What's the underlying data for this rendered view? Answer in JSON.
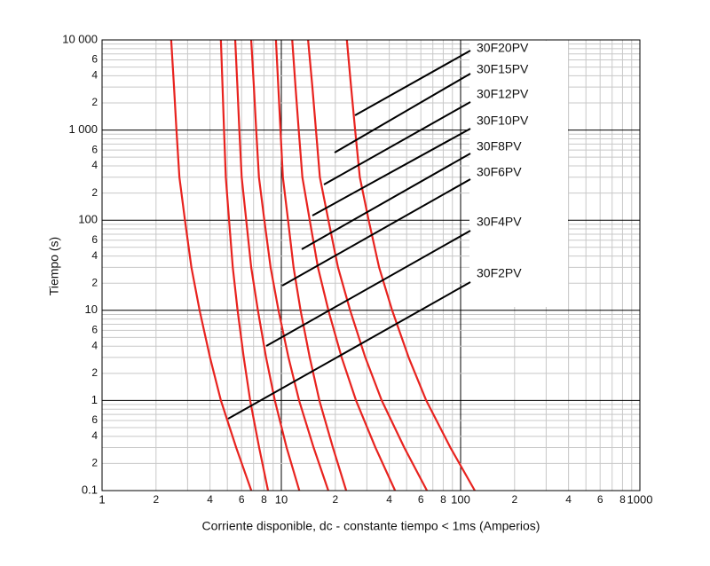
{
  "chart_data": {
    "type": "line",
    "x_label": "Corriente disponible, dc - constante tiempo < 1ms (Amperios)",
    "y_label": "Tiempo (s)",
    "xscale": "log",
    "yscale": "log",
    "grid": true,
    "minor_grid": true,
    "xlim": [
      1,
      1000
    ],
    "ylim": [
      0.1,
      10000
    ],
    "xticks": [
      1,
      2,
      4,
      6,
      8,
      10,
      {
        "value": 20,
        "label": "2"
      },
      {
        "value": 40,
        "label": "4"
      },
      {
        "value": 60,
        "label": "6"
      },
      {
        "value": 80,
        "label": "8"
      },
      100,
      {
        "value": 200,
        "label": "2"
      },
      {
        "value": 400,
        "label": "4"
      },
      {
        "value": 600,
        "label": "6"
      },
      {
        "value": 800,
        "label": "8"
      },
      1000
    ],
    "yticks": [
      0.1,
      {
        "value": 0.2,
        "label": "2"
      },
      {
        "value": 0.4,
        "label": "4"
      },
      {
        "value": 0.6,
        "label": "6"
      },
      1,
      2,
      4,
      6,
      10,
      {
        "value": 20,
        "label": "2"
      },
      {
        "value": 40,
        "label": "4"
      },
      {
        "value": 60,
        "label": "6"
      },
      100,
      {
        "value": 200,
        "label": "2"
      },
      {
        "value": 400,
        "label": "4"
      },
      {
        "value": 600,
        "label": "6"
      },
      {
        "value": 1000,
        "label": "1 000"
      },
      {
        "value": 2000,
        "label": "2"
      },
      {
        "value": 4000,
        "label": "4"
      },
      {
        "value": 6000,
        "label": "6"
      },
      {
        "value": 10000,
        "label": "10 000"
      }
    ],
    "series": [
      {
        "name": "30F2PV",
        "color": "#e8231f",
        "x": [
          2.43,
          2.52,
          2.6,
          2.7,
          2.9,
          3.15,
          3.5,
          4.0,
          4.6,
          5.6,
          6.8
        ],
        "values": [
          10000,
          3000,
          1000,
          300,
          100,
          30,
          10,
          3,
          1,
          0.3,
          0.1
        ]
      },
      {
        "name": "30F4PV",
        "color": "#e8231f",
        "x": [
          4.6,
          4.7,
          4.79,
          4.9,
          5.11,
          5.36,
          5.7,
          6.17,
          6.7,
          7.52,
          8.43
        ],
        "values": [
          10000,
          3000,
          1000,
          300,
          100,
          30,
          10,
          3,
          1,
          0.3,
          0.1
        ]
      },
      {
        "name": "30F6PV",
        "color": "#e8231f",
        "x": [
          5.53,
          5.69,
          5.83,
          6.01,
          6.37,
          6.79,
          7.4,
          8.22,
          9.2,
          10.7,
          12.6
        ],
        "values": [
          10000,
          3000,
          1000,
          300,
          100,
          30,
          10,
          3,
          1,
          0.3,
          0.1
        ]
      },
      {
        "name": "30F8PV",
        "color": "#e8231f",
        "x": [
          6.79,
          7.03,
          7.24,
          7.5,
          8.04,
          8.71,
          9.64,
          10.96,
          12.56,
          15.14,
          18.28
        ],
        "values": [
          10000,
          3000,
          1000,
          300,
          100,
          30,
          10,
          3,
          1,
          0.3,
          0.1
        ]
      },
      {
        "name": "30F10PV",
        "color": "#e8231f",
        "x": [
          9.33,
          9.62,
          9.89,
          10.2,
          10.9,
          11.7,
          12.8,
          14.4,
          16.3,
          19.4,
          23.0
        ],
        "values": [
          10000,
          3000,
          1000,
          300,
          100,
          30,
          10,
          3,
          1,
          0.3,
          0.1
        ]
      },
      {
        "name": "30F12PV",
        "color": "#e8231f",
        "x": [
          11.5,
          12.0,
          12.5,
          13.1,
          14.4,
          16.0,
          18.3,
          21.7,
          26.1,
          33.5,
          43.1
        ],
        "values": [
          10000,
          3000,
          1000,
          300,
          100,
          30,
          10,
          3,
          1,
          0.3,
          0.1
        ]
      },
      {
        "name": "30F15PV",
        "color": "#e8231f",
        "x": [
          14.1,
          14.9,
          15.6,
          16.4,
          18.3,
          20.7,
          24.2,
          29.4,
          36.3,
          48.5,
          64.9
        ],
        "values": [
          10000,
          3000,
          1000,
          300,
          100,
          30,
          10,
          3,
          1,
          0.3,
          0.1
        ]
      },
      {
        "name": "30F20PV",
        "color": "#e8231f",
        "x": [
          23.2,
          24.5,
          25.8,
          27.4,
          30.7,
          35.1,
          41.5,
          51.3,
          64.3,
          87.7,
          120
        ],
        "values": [
          10000,
          3000,
          1000,
          300,
          100,
          30,
          10,
          3,
          1,
          0.3,
          0.1
        ]
      }
    ]
  }
}
